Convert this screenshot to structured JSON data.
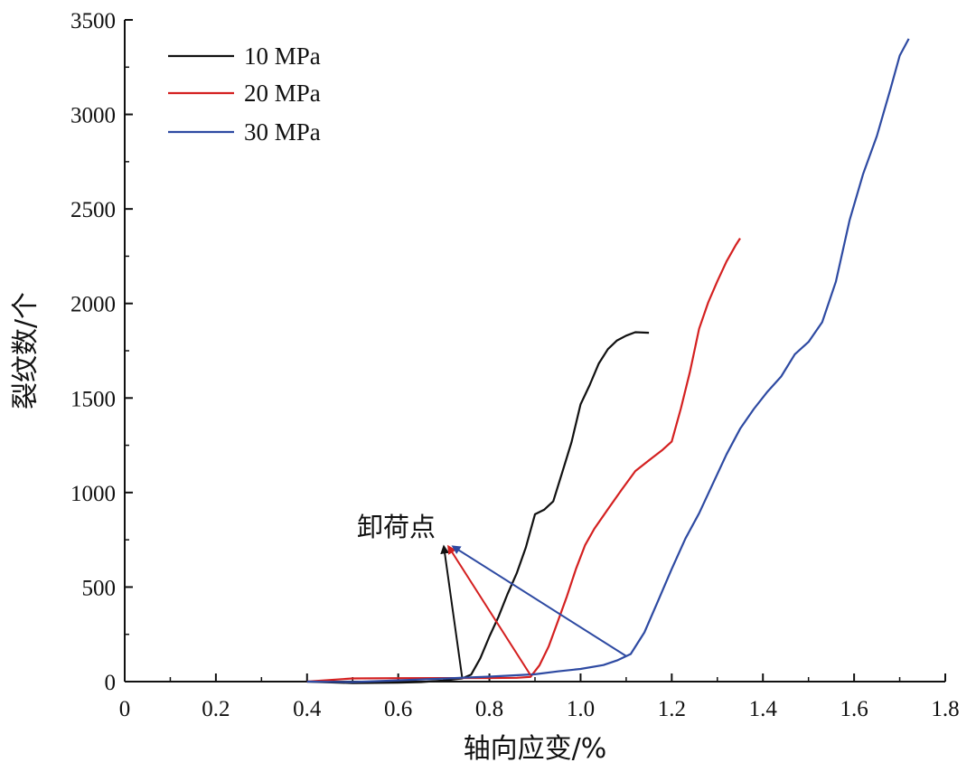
{
  "chart_data": {
    "type": "line",
    "title": "",
    "xlabel": "轴向应变/%",
    "ylabel": "裂纹数/个",
    "xlim": [
      0,
      1.8
    ],
    "ylim": [
      0,
      3500
    ],
    "xticks": [
      0,
      0.2,
      0.4,
      0.6,
      0.8,
      1.0,
      1.2,
      1.4,
      1.6,
      1.8
    ],
    "xtick_labels": [
      "0",
      "0.2",
      "0.4",
      "0.6",
      "0.8",
      "1.0",
      "1.2",
      "1.4",
      "1.6",
      "1.8"
    ],
    "yticks": [
      0,
      500,
      1000,
      1500,
      2000,
      2500,
      3000,
      3500
    ],
    "ytick_labels": [
      "0",
      "500",
      "1000",
      "1500",
      "2000",
      "2500",
      "3000",
      "3500"
    ],
    "legend_position": "top-left",
    "grid": false,
    "series": [
      {
        "name": "10 MPa",
        "color": "#111111",
        "x": [
          0.4,
          0.5,
          0.6,
          0.65,
          0.7,
          0.74,
          0.76,
          0.78,
          0.8,
          0.82,
          0.84,
          0.86,
          0.88,
          0.9,
          0.92,
          0.94,
          0.96,
          0.98,
          1.0,
          1.02,
          1.04,
          1.06,
          1.08,
          1.1,
          1.12,
          1.15
        ],
        "y": [
          0,
          3,
          8,
          12,
          18,
          25,
          40,
          120,
          230,
          330,
          450,
          560,
          700,
          880,
          910,
          960,
          1120,
          1280,
          1480,
          1580,
          1690,
          1760,
          1800,
          1820,
          1835,
          1845
        ]
      },
      {
        "name": "20 MPa",
        "color": "#d42020",
        "x": [
          0.4,
          0.5,
          0.6,
          0.7,
          0.8,
          0.86,
          0.89,
          0.91,
          0.93,
          0.95,
          0.97,
          0.99,
          1.01,
          1.03,
          1.06,
          1.09,
          1.12,
          1.15,
          1.18,
          1.2,
          1.22,
          1.24,
          1.26,
          1.28,
          1.3,
          1.32,
          1.34,
          1.35
        ],
        "y": [
          0,
          3,
          7,
          12,
          18,
          25,
          35,
          100,
          200,
          330,
          460,
          600,
          720,
          800,
          900,
          1000,
          1100,
          1160,
          1220,
          1270,
          1450,
          1650,
          1880,
          2020,
          2130,
          2230,
          2310,
          2345
        ]
      },
      {
        "name": "30 MPa",
        "color": "#2e4aa2",
        "x": [
          0.4,
          0.5,
          0.6,
          0.7,
          0.8,
          0.9,
          0.95,
          1.0,
          1.05,
          1.08,
          1.11,
          1.14,
          1.17,
          1.2,
          1.23,
          1.26,
          1.29,
          1.32,
          1.35,
          1.38,
          1.41,
          1.44,
          1.47,
          1.5,
          1.53,
          1.56,
          1.59,
          1.62,
          1.65,
          1.68,
          1.7,
          1.72
        ],
        "y": [
          0,
          3,
          6,
          10,
          15,
          25,
          40,
          55,
          80,
          110,
          150,
          270,
          440,
          610,
          770,
          900,
          1050,
          1200,
          1330,
          1430,
          1520,
          1600,
          1720,
          1790,
          1900,
          2120,
          2450,
          2700,
          2900,
          3150,
          3320,
          3400
        ]
      }
    ],
    "annotations": [
      {
        "text": "卸荷点",
        "arrows": [
          {
            "series": "10 MPa",
            "from": [
              0.74,
              25
            ],
            "to": [
              0.7,
              715
            ],
            "color": "#111111"
          },
          {
            "series": "20 MPa",
            "from": [
              0.89,
              35
            ],
            "to": [
              0.71,
              715
            ],
            "color": "#d42020"
          },
          {
            "series": "30 MPa",
            "from": [
              1.1,
              135
            ],
            "to": [
              0.72,
              715
            ],
            "color": "#2e4aa2"
          }
        ]
      }
    ]
  }
}
